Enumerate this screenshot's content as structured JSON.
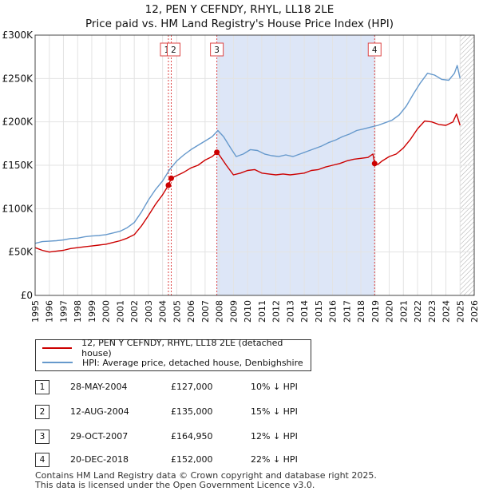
{
  "header": {
    "title_line1": "12, PEN Y CEFNDY, RHYL, LL18 2LE",
    "title_line2": "Price paid vs. HM Land Registry's House Price Index (HPI)"
  },
  "colors": {
    "property": "#cc0000",
    "hpi": "#6699cc",
    "band": "#dde6f7",
    "marker_line": "#dd4444"
  },
  "chart_data": {
    "type": "line",
    "title": "Price paid vs. HM Land Registry's House Price Index (HPI)",
    "xlabel": "",
    "ylabel": "",
    "xlim": [
      1995,
      2026
    ],
    "ylim": [
      0,
      300000
    ],
    "grid": true,
    "x_ticks": [
      "1995",
      "1996",
      "1997",
      "1998",
      "1999",
      "2000",
      "2001",
      "2002",
      "2003",
      "2004",
      "2005",
      "2006",
      "2007",
      "2008",
      "2009",
      "2010",
      "2011",
      "2012",
      "2013",
      "2014",
      "2015",
      "2016",
      "2017",
      "2018",
      "2019",
      "2020",
      "2021",
      "2022",
      "2023",
      "2024",
      "2025",
      "2026"
    ],
    "y_ticks": [
      {
        "value": 0,
        "label": "£0"
      },
      {
        "value": 50000,
        "label": "£50K"
      },
      {
        "value": 100000,
        "label": "£100K"
      },
      {
        "value": 150000,
        "label": "£150K"
      },
      {
        "value": 200000,
        "label": "£200K"
      },
      {
        "value": 250000,
        "label": "£250K"
      },
      {
        "value": 300000,
        "label": "£300K"
      }
    ],
    "series": [
      {
        "name": "12, PEN Y CEFNDY, RHYL, LL18 2LE (detached house)",
        "color": "#cc0000",
        "points": [
          [
            1995.0,
            55000
          ],
          [
            1995.5,
            52000
          ],
          [
            1996.0,
            50000
          ],
          [
            1996.5,
            51000
          ],
          [
            1997.0,
            52000
          ],
          [
            1997.5,
            54000
          ],
          [
            1998.0,
            55000
          ],
          [
            1998.5,
            56000
          ],
          [
            1999.0,
            57000
          ],
          [
            1999.5,
            58000
          ],
          [
            2000.0,
            59000
          ],
          [
            2000.5,
            61000
          ],
          [
            2001.0,
            63000
          ],
          [
            2001.5,
            66000
          ],
          [
            2002.0,
            70000
          ],
          [
            2002.5,
            80000
          ],
          [
            2003.0,
            92000
          ],
          [
            2003.5,
            105000
          ],
          [
            2004.0,
            116000
          ],
          [
            2004.41,
            127000
          ],
          [
            2004.61,
            135000
          ],
          [
            2005.0,
            138000
          ],
          [
            2005.5,
            142000
          ],
          [
            2006.0,
            147000
          ],
          [
            2006.5,
            150000
          ],
          [
            2007.0,
            156000
          ],
          [
            2007.5,
            160000
          ],
          [
            2007.83,
            164950
          ],
          [
            2008.0,
            162000
          ],
          [
            2008.5,
            150000
          ],
          [
            2009.0,
            139000
          ],
          [
            2009.5,
            141000
          ],
          [
            2010.0,
            144000
          ],
          [
            2010.5,
            145000
          ],
          [
            2011.0,
            141000
          ],
          [
            2011.5,
            140000
          ],
          [
            2012.0,
            139000
          ],
          [
            2012.5,
            140000
          ],
          [
            2013.0,
            139000
          ],
          [
            2013.5,
            140000
          ],
          [
            2014.0,
            141000
          ],
          [
            2014.5,
            144000
          ],
          [
            2015.0,
            145000
          ],
          [
            2015.5,
            148000
          ],
          [
            2016.0,
            150000
          ],
          [
            2016.5,
            152000
          ],
          [
            2017.0,
            155000
          ],
          [
            2017.5,
            157000
          ],
          [
            2018.0,
            158000
          ],
          [
            2018.5,
            159000
          ],
          [
            2018.85,
            163000
          ],
          [
            2018.97,
            152000
          ],
          [
            2019.2,
            151000
          ],
          [
            2019.5,
            155000
          ],
          [
            2020.0,
            160000
          ],
          [
            2020.5,
            163000
          ],
          [
            2021.0,
            170000
          ],
          [
            2021.5,
            180000
          ],
          [
            2022.0,
            192000
          ],
          [
            2022.5,
            201000
          ],
          [
            2023.0,
            200000
          ],
          [
            2023.5,
            197000
          ],
          [
            2024.0,
            196000
          ],
          [
            2024.5,
            200000
          ],
          [
            2024.75,
            209000
          ],
          [
            2025.0,
            196000
          ]
        ]
      },
      {
        "name": "HPI: Average price, detached house, Denbighshire",
        "color": "#6699cc",
        "points": [
          [
            1995.0,
            60000
          ],
          [
            1995.5,
            62000
          ],
          [
            1996.0,
            62500
          ],
          [
            1996.5,
            63000
          ],
          [
            1997.0,
            64000
          ],
          [
            1997.5,
            65500
          ],
          [
            1998.0,
            66000
          ],
          [
            1998.5,
            67500
          ],
          [
            1999.0,
            68500
          ],
          [
            1999.5,
            69000
          ],
          [
            2000.0,
            70000
          ],
          [
            2000.5,
            72000
          ],
          [
            2001.0,
            74000
          ],
          [
            2001.5,
            78000
          ],
          [
            2002.0,
            84000
          ],
          [
            2002.5,
            96000
          ],
          [
            2003.0,
            110000
          ],
          [
            2003.5,
            122000
          ],
          [
            2004.0,
            132000
          ],
          [
            2004.5,
            145000
          ],
          [
            2005.0,
            155000
          ],
          [
            2005.5,
            162000
          ],
          [
            2006.0,
            168000
          ],
          [
            2006.5,
            173000
          ],
          [
            2007.0,
            178000
          ],
          [
            2007.5,
            183000
          ],
          [
            2007.9,
            190000
          ],
          [
            2008.3,
            183000
          ],
          [
            2008.8,
            170000
          ],
          [
            2009.2,
            160000
          ],
          [
            2009.7,
            163000
          ],
          [
            2010.2,
            168000
          ],
          [
            2010.7,
            167000
          ],
          [
            2011.2,
            163000
          ],
          [
            2011.7,
            161000
          ],
          [
            2012.2,
            160000
          ],
          [
            2012.7,
            162000
          ],
          [
            2013.2,
            160000
          ],
          [
            2013.7,
            163000
          ],
          [
            2014.2,
            166000
          ],
          [
            2014.7,
            169000
          ],
          [
            2015.2,
            172000
          ],
          [
            2015.7,
            176000
          ],
          [
            2016.2,
            179000
          ],
          [
            2016.7,
            183000
          ],
          [
            2017.2,
            186000
          ],
          [
            2017.7,
            190000
          ],
          [
            2018.2,
            192000
          ],
          [
            2018.7,
            194000
          ],
          [
            2019.2,
            196000
          ],
          [
            2019.7,
            199000
          ],
          [
            2020.2,
            202000
          ],
          [
            2020.7,
            208000
          ],
          [
            2021.2,
            218000
          ],
          [
            2021.7,
            232000
          ],
          [
            2022.2,
            245000
          ],
          [
            2022.7,
            256000
          ],
          [
            2023.2,
            254000
          ],
          [
            2023.7,
            249000
          ],
          [
            2024.2,
            248000
          ],
          [
            2024.6,
            256000
          ],
          [
            2024.8,
            265000
          ],
          [
            2025.0,
            250000
          ]
        ]
      }
    ],
    "shaded_band": {
      "from": 2007.83,
      "to": 2018.97
    },
    "forecast_hatch_from": 2025.0,
    "markers": [
      {
        "num": "1",
        "x": 2004.41,
        "value": 127000
      },
      {
        "num": "2",
        "x": 2004.61,
        "value": 135000
      },
      {
        "num": "3",
        "x": 2007.83,
        "value": 164950
      },
      {
        "num": "4",
        "x": 2018.97,
        "value": 152000
      }
    ]
  },
  "legend": {
    "property_label": "12, PEN Y CEFNDY, RHYL, LL18 2LE (detached house)",
    "hpi_label": "HPI: Average price, detached house, Denbighshire"
  },
  "transactions": [
    {
      "num": "1",
      "date": "28-MAY-2004",
      "price": "£127,000",
      "hpi": "10% ↓ HPI"
    },
    {
      "num": "2",
      "date": "12-AUG-2004",
      "price": "£135,000",
      "hpi": "15% ↓ HPI"
    },
    {
      "num": "3",
      "date": "29-OCT-2007",
      "price": "£164,950",
      "hpi": "12% ↓ HPI"
    },
    {
      "num": "4",
      "date": "20-DEC-2018",
      "price": "£152,000",
      "hpi": "22% ↓ HPI"
    }
  ],
  "footer": {
    "line1": "Contains HM Land Registry data © Crown copyright and database right 2025.",
    "line2": "This data is licensed under the Open Government Licence v3.0."
  }
}
